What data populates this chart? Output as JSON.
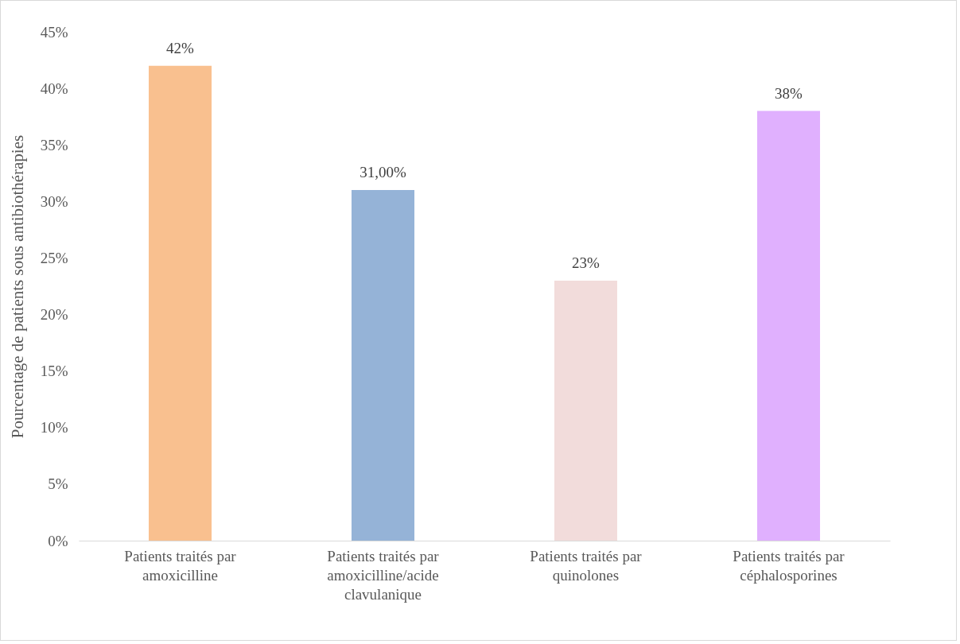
{
  "chart_data": {
    "type": "bar",
    "ylabel": "Pourcentage de patients sous antibiothérapies",
    "categories": [
      "Patients traités par amoxicilline",
      "Patients traités par amoxicilline/acide clavulanique",
      "Patients traités par quinolones",
      "Patients traités par céphalosporines"
    ],
    "values": [
      42,
      31,
      23,
      38
    ],
    "colors": [
      "#f9c08f",
      "#95b3d7",
      "#f2dcdb",
      "#e0b0fe"
    ],
    "value_labels": [
      "42%",
      "31,00%",
      "23%",
      "38%"
    ],
    "ylim": [
      0,
      45
    ],
    "yticks": [
      {
        "value": 0,
        "label": "0%"
      },
      {
        "value": 5,
        "label": "5%"
      },
      {
        "value": 10,
        "label": "10%"
      },
      {
        "value": 15,
        "label": "15%"
      },
      {
        "value": 20,
        "label": "20%"
      },
      {
        "value": 25,
        "label": "25%"
      },
      {
        "value": 30,
        "label": "30%"
      },
      {
        "value": 35,
        "label": "35%"
      },
      {
        "value": 40,
        "label": "40%"
      },
      {
        "value": 45,
        "label": "45%"
      }
    ],
    "grid": false
  }
}
